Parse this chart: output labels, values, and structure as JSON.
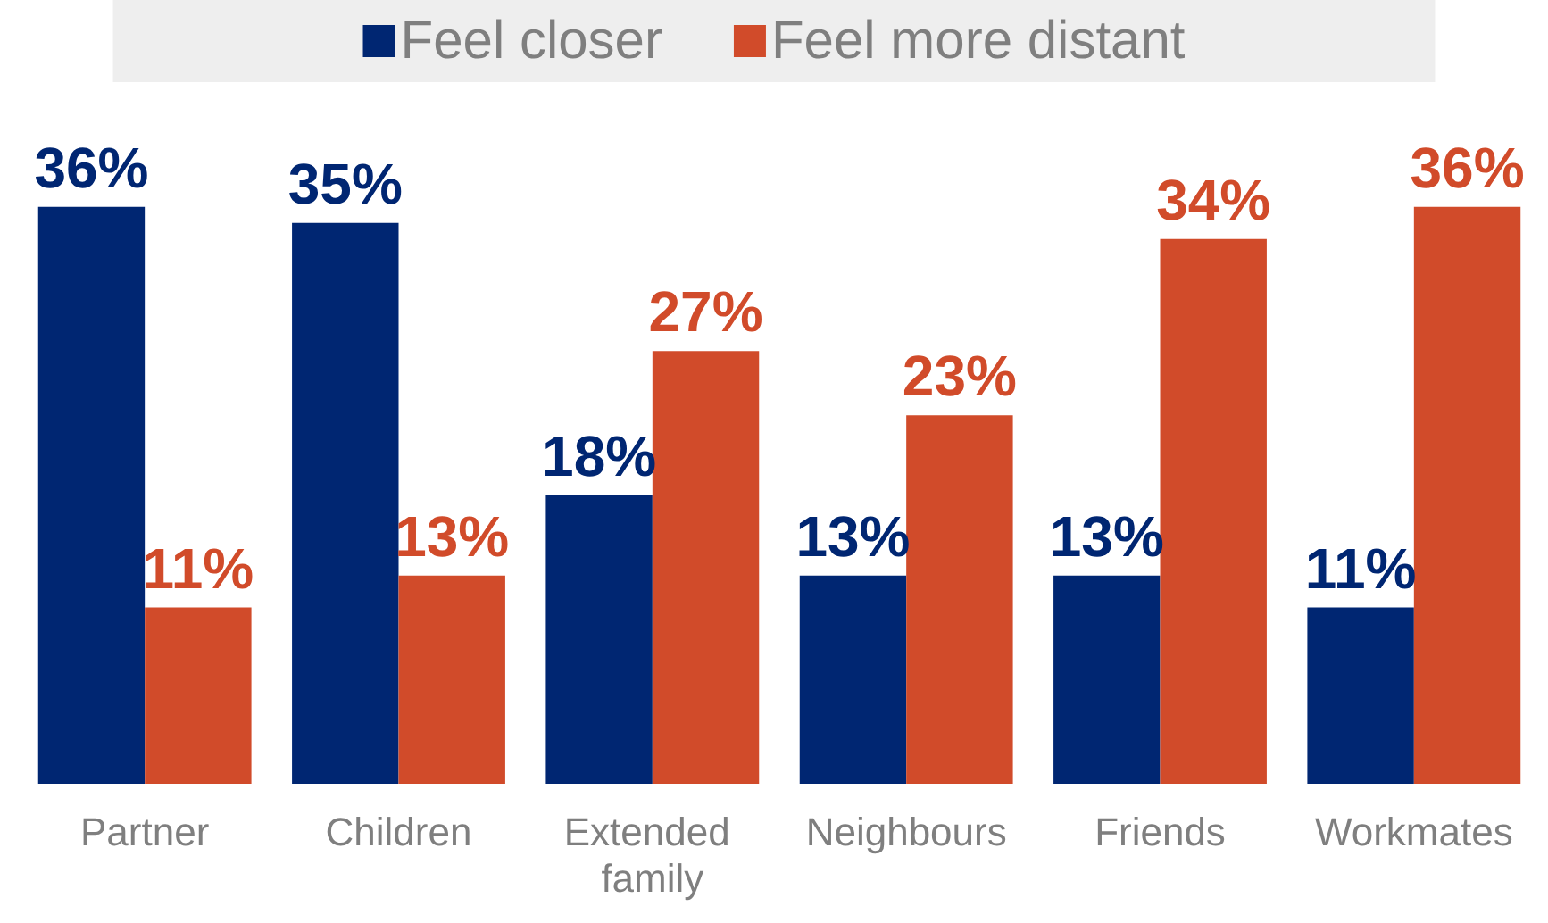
{
  "chart_data": {
    "type": "bar",
    "categories": [
      "Partner",
      "Children",
      "Extended family",
      "Neighbours",
      "Friends",
      "Workmates"
    ],
    "series": [
      {
        "name": "Feel closer",
        "color": "#002672",
        "values": [
          36,
          35,
          18,
          13,
          13,
          11
        ],
        "value_labels": [
          "36%",
          "35%",
          "18%",
          "13%",
          "13%",
          "11%"
        ]
      },
      {
        "name": "Feel more distant",
        "color": "#d14b2a",
        "values": [
          11,
          13,
          27,
          23,
          34,
          36
        ],
        "value_labels": [
          "11%",
          "13%",
          "27%",
          "23%",
          "34%",
          "36%"
        ]
      }
    ],
    "legend": "top",
    "grid": false
  }
}
